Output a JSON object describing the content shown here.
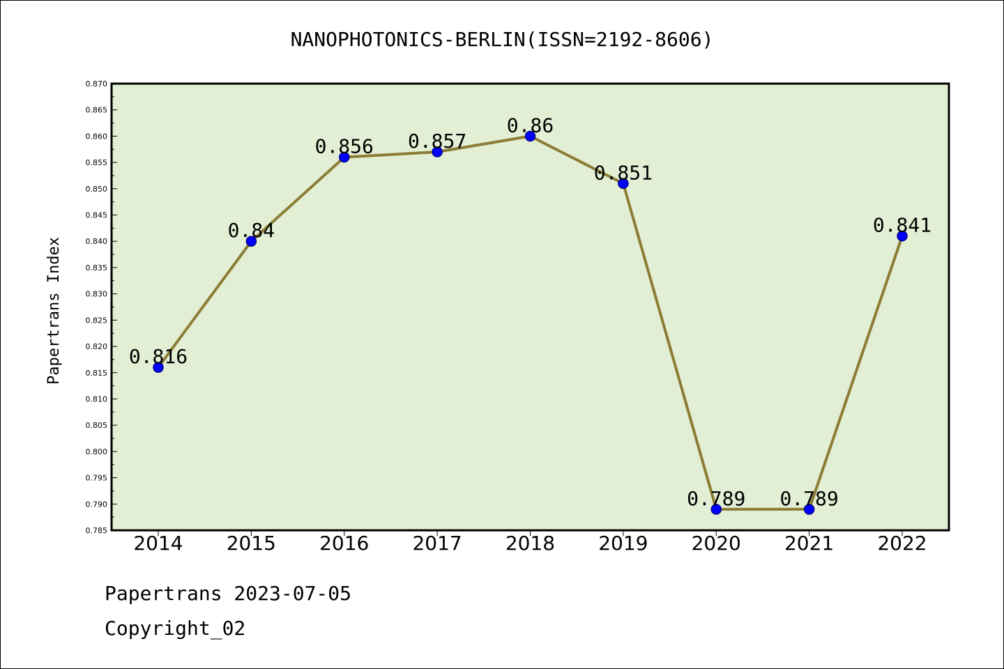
{
  "chart_data": {
    "type": "line",
    "title": "NANOPHOTONICS-BERLIN(ISSN=2192-8606)",
    "xlabel": "",
    "ylabel": "Papertrans Index",
    "categories": [
      "2014",
      "2015",
      "2016",
      "2017",
      "2018",
      "2019",
      "2020",
      "2021",
      "2022"
    ],
    "series": [
      {
        "values": [
          0.816,
          0.84,
          0.856,
          0.857,
          0.86,
          0.851,
          0.789,
          0.789,
          0.841
        ],
        "data_labels": [
          "0.816",
          "0.84",
          "0.856",
          "0.857",
          "0.86",
          "0.851",
          "0.789",
          "0.789",
          "0.841"
        ]
      }
    ],
    "ylim": [
      0.785,
      0.87
    ],
    "yticks": [
      "0.785",
      "0.790",
      "0.795",
      "0.800",
      "0.805",
      "0.810",
      "0.815",
      "0.820",
      "0.825",
      "0.830",
      "0.835",
      "0.840",
      "0.845",
      "0.850",
      "0.855",
      "0.860",
      "0.865",
      "0.870"
    ],
    "ytick_values": [
      0.785,
      0.79,
      0.795,
      0.8,
      0.805,
      0.81,
      0.815,
      0.82,
      0.825,
      0.83,
      0.835,
      0.84,
      0.845,
      0.85,
      0.855,
      0.86,
      0.865,
      0.87
    ],
    "grid": false,
    "legend": "none",
    "colors": {
      "plot_background": "#e2efd5",
      "line": "#8b7d35",
      "marker_fill": "#0000ff",
      "marker_stroke": "#00008b",
      "axis": "#000000"
    }
  },
  "footer": {
    "line1": "Papertrans 2023-07-05",
    "line2": "Copyright_02"
  }
}
